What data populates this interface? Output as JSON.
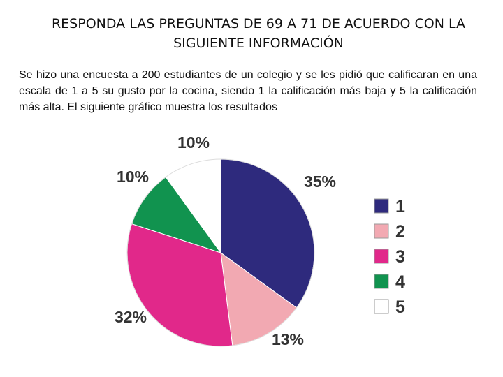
{
  "heading": {
    "line1": "RESPONDA LAS PREGUNTAS DE 69 A 71 DE ACUERDO CON LA",
    "line2": "SIGUIENTE INFORMACIÓN"
  },
  "intro": "Se hizo una encuesta a 200 estudiantes de un colegio y se les pidió que calificaran en una escala de 1 a 5 su gusto por la cocina, siendo 1 la calificación más baja y 5 la calificación más alta. El siguiente gráfico muestra los resultados",
  "chart_data": {
    "type": "pie",
    "title": "",
    "categories": [
      "1",
      "2",
      "3",
      "4",
      "5"
    ],
    "values": [
      35,
      13,
      32,
      10,
      10
    ],
    "labels": [
      "35%",
      "13%",
      "32%",
      "10%",
      "10%"
    ],
    "colors": [
      "#2e2a7d",
      "#f2a9b2",
      "#e1288a",
      "#11934f",
      "#ffffff"
    ],
    "start_angle_deg": 0,
    "direction": "clockwise",
    "legend_position": "right"
  }
}
